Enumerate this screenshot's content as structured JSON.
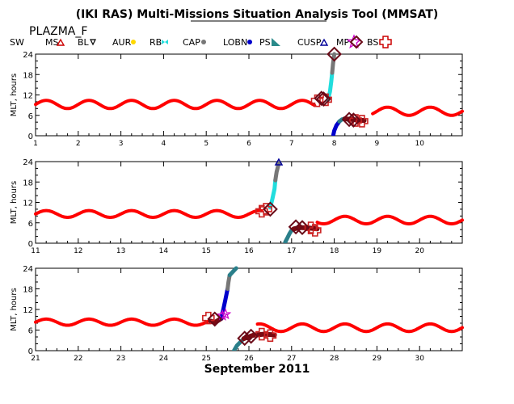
{
  "title": "(IKI RAS) Multi-Missions Situation Analysis Tool (MMSAT)",
  "mission": "PLAZMA_F",
  "month_label": "September 2011",
  "legend": [
    {
      "label": "SW",
      "color": "#000000",
      "marker": "none"
    },
    {
      "label": "MS",
      "color": "#cc0000",
      "marker": "triangle-up"
    },
    {
      "label": "BL",
      "color": "#000000",
      "marker": "triangle-down"
    },
    {
      "label": "AUR",
      "color": "#ffd800",
      "marker": "dot"
    },
    {
      "label": "RB",
      "color": "#22dddd",
      "marker": "bowtie"
    },
    {
      "label": "CAP",
      "color": "#777777",
      "marker": "dot"
    },
    {
      "label": "LOBN",
      "color": "#0000cc",
      "marker": "dot"
    },
    {
      "label": "PS",
      "color": "#2a8a8a",
      "marker": "wedge"
    },
    {
      "label": "CUSP",
      "color": "#000099",
      "marker": "triangle-up"
    },
    {
      "label": "MP",
      "color": "#cc00cc",
      "marker": "star"
    },
    {
      "label": "BS",
      "color": "#cc0000",
      "marker": "cross"
    }
  ],
  "colors": {
    "sw": "#ff0000",
    "ms": "#7a0a12",
    "rb": "#22dddd",
    "cap": "#777777",
    "lobn": "#0000cc",
    "ps": "#2a7f8a",
    "cusp": "#000099",
    "mp": "#cc00cc",
    "mp_marker": "#6a0a18",
    "bs_marker": "#cc2222"
  },
  "chart_data": [
    {
      "type": "scatter",
      "ylabel": "MLT, hours",
      "xlim": [
        1,
        11
      ],
      "ylim": [
        0,
        24
      ],
      "xticks": [
        1,
        2,
        3,
        4,
        5,
        6,
        7,
        8,
        9,
        10
      ],
      "yticks": [
        0,
        6,
        12,
        18,
        24
      ],
      "sw": {
        "start": 1.0,
        "end": 7.55,
        "base": 9.2,
        "amp": 1.2
      },
      "sw2": {
        "start": 8.9,
        "end": 11.0,
        "base": 7.2,
        "amp": 1.2,
        "phase": 0.0
      },
      "segments": [
        {
          "class": "rb",
          "points": [
            [
              7.85,
              10.5
            ],
            [
              7.9,
              13.0
            ],
            [
              7.93,
              16.0
            ],
            [
              7.95,
              18.5
            ]
          ]
        },
        {
          "class": "cap",
          "points": [
            [
              7.95,
              18.5
            ],
            [
              7.97,
              21.0
            ],
            [
              8.0,
              24.0
            ]
          ]
        },
        {
          "class": "lobn",
          "points": [
            [
              7.98,
              0.3
            ],
            [
              8.0,
              1.5
            ],
            [
              8.05,
              3.0
            ],
            [
              8.12,
              4.2
            ]
          ]
        },
        {
          "class": "ps",
          "points": [
            [
              8.12,
              4.2
            ],
            [
              8.18,
              4.8
            ],
            [
              8.25,
              5.0
            ]
          ]
        },
        {
          "class": "ms",
          "points": [
            [
              8.25,
              5.0
            ],
            [
              8.4,
              4.8
            ],
            [
              8.55,
              4.6
            ],
            [
              8.7,
              4.5
            ]
          ]
        }
      ],
      "mp_crossings": [
        [
          7.7,
          11.0
        ],
        [
          7.75,
          10.8
        ],
        [
          8.0,
          24.0
        ],
        [
          8.35,
          4.8
        ],
        [
          8.45,
          4.6
        ]
      ],
      "bs_crossings": [
        [
          7.6,
          10.3
        ],
        [
          7.8,
          10.6
        ],
        [
          8.5,
          4.5
        ],
        [
          8.65,
          4.3
        ]
      ]
    },
    {
      "type": "scatter",
      "ylabel": "MLT, hours",
      "xlim": [
        11,
        21
      ],
      "ylim": [
        0,
        24
      ],
      "xticks": [
        11,
        12,
        13,
        14,
        15,
        16,
        17,
        18,
        19,
        20
      ],
      "yticks": [
        0,
        6,
        12,
        18,
        24
      ],
      "sw": {
        "start": 11.0,
        "end": 16.3,
        "base": 8.6,
        "amp": 1.0
      },
      "sw2": {
        "start": 17.6,
        "end": 21.0,
        "base": 6.8,
        "amp": 1.1,
        "phase": 0.0
      },
      "segments": [
        {
          "class": "rb",
          "points": [
            [
              16.5,
              10.5
            ],
            [
              16.55,
              13.0
            ],
            [
              16.6,
              16.0
            ],
            [
              16.62,
              18.5
            ]
          ]
        },
        {
          "class": "cap",
          "points": [
            [
              16.62,
              18.5
            ],
            [
              16.65,
              21.0
            ],
            [
              16.7,
              23.5
            ]
          ]
        },
        {
          "class": "ps",
          "points": [
            [
              16.85,
              0.3
            ],
            [
              16.9,
              1.5
            ],
            [
              16.95,
              2.8
            ],
            [
              17.0,
              3.8
            ]
          ]
        },
        {
          "class": "ms",
          "points": [
            [
              17.05,
              4.2
            ],
            [
              17.2,
              4.6
            ],
            [
              17.4,
              4.5
            ],
            [
              17.6,
              4.2
            ]
          ]
        }
      ],
      "cusp_points": [
        [
          16.7,
          24.0
        ]
      ],
      "mp_crossings": [
        [
          16.5,
          10.0
        ],
        [
          17.1,
          4.8
        ],
        [
          17.25,
          4.6
        ]
      ],
      "bs_crossings": [
        [
          16.3,
          9.4
        ],
        [
          16.4,
          10.0
        ],
        [
          17.45,
          4.5
        ],
        [
          17.55,
          3.8
        ]
      ]
    },
    {
      "type": "scatter",
      "ylabel": "MLT, hours",
      "xlim": [
        21,
        31
      ],
      "ylim": [
        0,
        24
      ],
      "xticks": [
        21,
        22,
        23,
        24,
        25,
        26,
        27,
        28,
        29,
        30
      ],
      "yticks": [
        0,
        6,
        12,
        18,
        24
      ],
      "sw": {
        "start": 21.0,
        "end": 25.1,
        "base": 8.3,
        "amp": 0.9
      },
      "sw2": {
        "start": 26.2,
        "end": 31.0,
        "base": 6.7,
        "amp": 1.1,
        "phase": 0.0
      },
      "segments": [
        {
          "class": "ms",
          "points": [
            [
              25.1,
              8.6
            ],
            [
              25.2,
              8.2
            ],
            [
              25.35,
              9.4
            ]
          ]
        },
        {
          "class": "lobn",
          "points": [
            [
              25.35,
              9.4
            ],
            [
              25.4,
              12.0
            ],
            [
              25.45,
              15.0
            ],
            [
              25.5,
              18.0
            ]
          ]
        },
        {
          "class": "cap",
          "points": [
            [
              25.5,
              18.0
            ],
            [
              25.52,
              20.0
            ],
            [
              25.55,
              22.0
            ]
          ]
        },
        {
          "class": "ps",
          "points": [
            [
              25.55,
              22.0
            ],
            [
              25.7,
              24.0
            ]
          ]
        },
        {
          "class": "ps",
          "points": [
            [
              25.65,
              0.0
            ],
            [
              25.72,
              1.5
            ],
            [
              25.8,
              2.5
            ],
            [
              25.88,
              3.5
            ]
          ]
        },
        {
          "class": "ms",
          "points": [
            [
              25.88,
              3.5
            ],
            [
              26.1,
              4.5
            ],
            [
              26.35,
              4.8
            ],
            [
              26.6,
              4.6
            ]
          ]
        }
      ],
      "mp_points": [
        [
          25.38,
          10.2
        ],
        [
          25.45,
          10.6
        ]
      ],
      "mp_crossings": [
        [
          25.2,
          9.2
        ],
        [
          25.9,
          3.6
        ],
        [
          26.05,
          4.2
        ]
      ],
      "bs_crossings": [
        [
          25.05,
          9.5
        ],
        [
          26.3,
          4.8
        ],
        [
          26.5,
          4.4
        ]
      ]
    }
  ]
}
